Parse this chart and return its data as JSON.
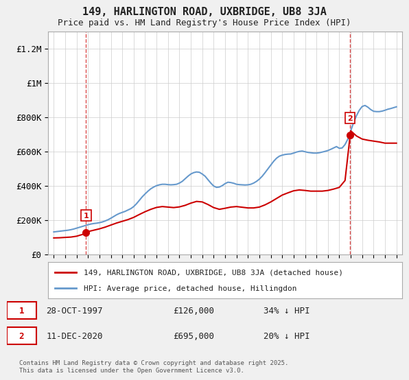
{
  "title": "149, HARLINGTON ROAD, UXBRIDGE, UB8 3JA",
  "subtitle": "Price paid vs. HM Land Registry's House Price Index (HPI)",
  "background_color": "#f0f0f0",
  "plot_background": "#ffffff",
  "red_color": "#cc0000",
  "blue_color": "#6699cc",
  "grid_color": "#cccccc",
  "ylim": [
    0,
    1300000
  ],
  "yticks": [
    0,
    200000,
    400000,
    600000,
    800000,
    1000000,
    1200000
  ],
  "ytick_labels": [
    "£0",
    "£200K",
    "£400K",
    "£600K",
    "£800K",
    "£1M",
    "£1.2M"
  ],
  "xlim_start": 1994.5,
  "xlim_end": 2025.5,
  "point1_x": 1997.83,
  "point1_y": 126000,
  "point2_x": 2020.95,
  "point2_y": 695000,
  "legend_line1": "149, HARLINGTON ROAD, UXBRIDGE, UB8 3JA (detached house)",
  "legend_line2": "HPI: Average price, detached house, Hillingdon",
  "ann1_label": "1",
  "ann1_date": "28-OCT-1997",
  "ann1_price": "£126,000",
  "ann1_hpi": "34% ↓ HPI",
  "ann2_label": "2",
  "ann2_date": "11-DEC-2020",
  "ann2_price": "£695,000",
  "ann2_hpi": "20% ↓ HPI",
  "footer": "Contains HM Land Registry data © Crown copyright and database right 2025.\nThis data is licensed under the Open Government Licence v3.0.",
  "hpi_years": [
    1995,
    1995.25,
    1995.5,
    1995.75,
    1996,
    1996.25,
    1996.5,
    1996.75,
    1997,
    1997.25,
    1997.5,
    1997.75,
    1998,
    1998.25,
    1998.5,
    1998.75,
    1999,
    1999.25,
    1999.5,
    1999.75,
    2000,
    2000.25,
    2000.5,
    2000.75,
    2001,
    2001.25,
    2001.5,
    2001.75,
    2002,
    2002.25,
    2002.5,
    2002.75,
    2003,
    2003.25,
    2003.5,
    2003.75,
    2004,
    2004.25,
    2004.5,
    2004.75,
    2005,
    2005.25,
    2005.5,
    2005.75,
    2006,
    2006.25,
    2006.5,
    2006.75,
    2007,
    2007.25,
    2007.5,
    2007.75,
    2008,
    2008.25,
    2008.5,
    2008.75,
    2009,
    2009.25,
    2009.5,
    2009.75,
    2010,
    2010.25,
    2010.5,
    2010.75,
    2011,
    2011.25,
    2011.5,
    2011.75,
    2012,
    2012.25,
    2012.5,
    2012.75,
    2013,
    2013.25,
    2013.5,
    2013.75,
    2014,
    2014.25,
    2014.5,
    2014.75,
    2015,
    2015.25,
    2015.5,
    2015.75,
    2016,
    2016.25,
    2016.5,
    2016.75,
    2017,
    2017.25,
    2017.5,
    2017.75,
    2018,
    2018.25,
    2018.5,
    2018.75,
    2019,
    2019.25,
    2019.5,
    2019.75,
    2020,
    2020.25,
    2020.5,
    2020.75,
    2021,
    2021.25,
    2021.5,
    2021.75,
    2022,
    2022.25,
    2022.5,
    2022.75,
    2023,
    2023.25,
    2023.5,
    2023.75,
    2024,
    2024.25,
    2024.5,
    2024.75,
    2025
  ],
  "hpi_values": [
    130000,
    132000,
    134000,
    136000,
    138000,
    140000,
    143000,
    147000,
    152000,
    157000,
    162000,
    167000,
    172000,
    176000,
    179000,
    181000,
    184000,
    188000,
    194000,
    201000,
    210000,
    220000,
    230000,
    238000,
    244000,
    250000,
    258000,
    266000,
    278000,
    295000,
    315000,
    335000,
    352000,
    368000,
    382000,
    392000,
    400000,
    405000,
    408000,
    408000,
    406000,
    405000,
    406000,
    408000,
    415000,
    425000,
    440000,
    455000,
    468000,
    476000,
    480000,
    478000,
    468000,
    455000,
    435000,
    415000,
    398000,
    390000,
    392000,
    400000,
    412000,
    420000,
    418000,
    414000,
    408000,
    406000,
    405000,
    404000,
    405000,
    408000,
    415000,
    425000,
    438000,
    455000,
    476000,
    498000,
    520000,
    542000,
    560000,
    572000,
    578000,
    582000,
    584000,
    585000,
    590000,
    596000,
    600000,
    602000,
    598000,
    594000,
    592000,
    590000,
    590000,
    592000,
    596000,
    600000,
    605000,
    612000,
    620000,
    628000,
    618000,
    620000,
    640000,
    672000,
    720000,
    768000,
    808000,
    840000,
    862000,
    868000,
    858000,
    844000,
    834000,
    832000,
    832000,
    835000,
    840000,
    846000,
    850000,
    855000,
    860000
  ],
  "property_years": [
    1995,
    1995.5,
    1996,
    1996.5,
    1997,
    1997.5,
    1997.83,
    1998,
    1998.5,
    1999,
    1999.5,
    2000,
    2000.5,
    2001,
    2001.5,
    2002,
    2002.5,
    2003,
    2003.5,
    2004,
    2004.5,
    2005,
    2005.5,
    2006,
    2006.5,
    2007,
    2007.5,
    2008,
    2008.5,
    2009,
    2009.5,
    2010,
    2010.5,
    2011,
    2011.5,
    2012,
    2012.5,
    2013,
    2013.5,
    2014,
    2014.5,
    2015,
    2015.5,
    2016,
    2016.5,
    2017,
    2017.5,
    2018,
    2018.5,
    2019,
    2019.5,
    2020,
    2020.5,
    2020.95,
    2021,
    2021.5,
    2022,
    2022.5,
    2023,
    2023.5,
    2024,
    2024.5,
    2025
  ],
  "property_values": [
    95000,
    96000,
    98000,
    100000,
    105000,
    115000,
    126000,
    132000,
    140000,
    148000,
    158000,
    170000,
    182000,
    192000,
    202000,
    215000,
    232000,
    248000,
    262000,
    273000,
    278000,
    275000,
    272000,
    276000,
    285000,
    298000,
    308000,
    305000,
    290000,
    272000,
    262000,
    268000,
    275000,
    278000,
    274000,
    270000,
    270000,
    275000,
    288000,
    305000,
    325000,
    345000,
    358000,
    370000,
    375000,
    372000,
    368000,
    368000,
    368000,
    372000,
    380000,
    390000,
    430000,
    695000,
    720000,
    690000,
    672000,
    665000,
    660000,
    655000,
    648000,
    648000,
    648000
  ],
  "dashed_line1_x": 1997.83,
  "dashed_line2_x": 2020.95
}
